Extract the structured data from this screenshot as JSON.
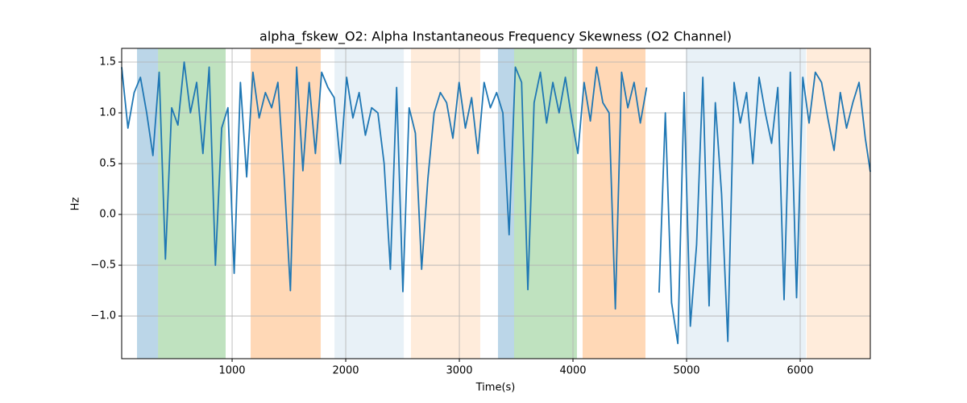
{
  "chart_data": {
    "type": "line",
    "title": "alpha_fskew_O2: Alpha Instantaneous Frequency Skewness (O2 Channel)",
    "x_label": "Time(s)",
    "y_label": "Hz",
    "xlim": [
      28,
      6617
    ],
    "ylim": [
      -1.42,
      1.635
    ],
    "xticks": [
      1000,
      2000,
      3000,
      4000,
      5000,
      6000
    ],
    "yticks": [
      {
        "value": -1,
        "label": "−1.0"
      },
      {
        "value": -0.5,
        "label": "−0.5"
      },
      {
        "value": 0,
        "label": "0.0"
      },
      0.5,
      {
        "value": 1,
        "label": "1.0"
      },
      1.5
    ],
    "grid": true,
    "spans": [
      {
        "start": 163,
        "end": 348,
        "color": "#1f77b4",
        "opacity": 0.3
      },
      {
        "start": 348,
        "end": 943,
        "color": "#2ca02c",
        "opacity": 0.3
      },
      {
        "start": 1163,
        "end": 1780,
        "color": "#ff7f0e",
        "opacity": 0.3
      },
      {
        "start": 1901,
        "end": 2511,
        "color": "#1f77b4",
        "opacity": 0.1
      },
      {
        "start": 2574,
        "end": 3184,
        "color": "#ff7f0e",
        "opacity": 0.15
      },
      {
        "start": 3340,
        "end": 3482,
        "color": "#1f77b4",
        "opacity": 0.3
      },
      {
        "start": 3482,
        "end": 4035,
        "color": "#2ca02c",
        "opacity": 0.3
      },
      {
        "start": 4085,
        "end": 4638,
        "color": "#ff7f0e",
        "opacity": 0.3
      },
      {
        "start": 4993,
        "end": 6050,
        "color": "#1f77b4",
        "opacity": 0.1
      },
      {
        "start": 6057,
        "end": 6617,
        "color": "#ff7f0e",
        "opacity": 0.15
      }
    ],
    "x": [
      28,
      83,
      138,
      193,
      248,
      303,
      358,
      413,
      468,
      523,
      578,
      633,
      688,
      743,
      798,
      853,
      908,
      963,
      1018,
      1073,
      1128,
      1183,
      1238,
      1293,
      1348,
      1403,
      1458,
      1513,
      1568,
      1623,
      1678,
      1733,
      1788,
      1843,
      1898,
      1953,
      2008,
      2063,
      2118,
      2173,
      2228,
      2283,
      2338,
      2393,
      2448,
      2503,
      2558,
      2613,
      2668,
      2723,
      2778,
      2833,
      2888,
      2943,
      2998,
      3053,
      3108,
      3163,
      3218,
      3273,
      3328,
      3383,
      3438,
      3493,
      3548,
      3603,
      3658,
      3713,
      3768,
      3823,
      3878,
      3933,
      3988,
      4043,
      4098,
      4153,
      4208,
      4263,
      4318,
      4373,
      4428,
      4483,
      4538,
      4593,
      4648,
      4703,
      4758,
      4813,
      4868,
      4923,
      4978,
      5033,
      5088,
      5143,
      5198,
      5253,
      5308,
      5363,
      5418,
      5473,
      5528,
      5583,
      5638,
      5693,
      5748,
      5803,
      5858,
      5913,
      5968,
      6023,
      6078,
      6133,
      6188,
      6243,
      6298,
      6353,
      6408,
      6463,
      6518,
      6573,
      6617
    ],
    "series": [
      {
        "color": "#1f77b4",
        "values": [
          1.45,
          0.85,
          1.2,
          1.35,
          1.0,
          0.58,
          1.4,
          -0.44,
          1.05,
          0.88,
          1.5,
          1.0,
          1.3,
          0.6,
          1.45,
          -0.5,
          0.85,
          1.05,
          -0.58,
          1.3,
          0.37,
          1.4,
          0.95,
          1.2,
          1.05,
          1.3,
          0.37,
          -0.75,
          1.45,
          0.43,
          1.3,
          0.6,
          1.4,
          1.25,
          1.15,
          0.5,
          1.35,
          0.95,
          1.2,
          0.78,
          1.05,
          1.0,
          0.5,
          -0.54,
          1.25,
          -0.76,
          1.05,
          0.8,
          -0.54,
          0.35,
          1.0,
          1.2,
          1.1,
          0.75,
          1.3,
          0.85,
          1.15,
          0.6,
          1.3,
          1.05,
          1.2,
          1.0,
          -0.2,
          1.45,
          1.3,
          -0.74,
          1.1,
          1.4,
          0.9,
          1.3,
          1.0,
          1.35,
          0.95,
          0.6,
          1.3,
          0.92,
          1.45,
          1.1,
          1.0,
          -0.93,
          1.4,
          1.05,
          1.3,
          0.9,
          1.25,
          null,
          -0.77,
          1.0,
          -0.87,
          -1.27,
          1.2,
          -1.1,
          -0.3,
          1.35,
          -0.9,
          1.1,
          0.2,
          -1.25,
          1.3,
          0.9,
          1.2,
          0.5,
          1.35,
          1.0,
          0.7,
          1.25,
          -0.84,
          1.4,
          -0.82,
          1.35,
          0.9,
          1.4,
          1.3,
          0.95,
          0.63,
          1.2,
          0.85,
          1.1,
          1.3,
          0.75,
          0.42
        ]
      }
    ]
  }
}
